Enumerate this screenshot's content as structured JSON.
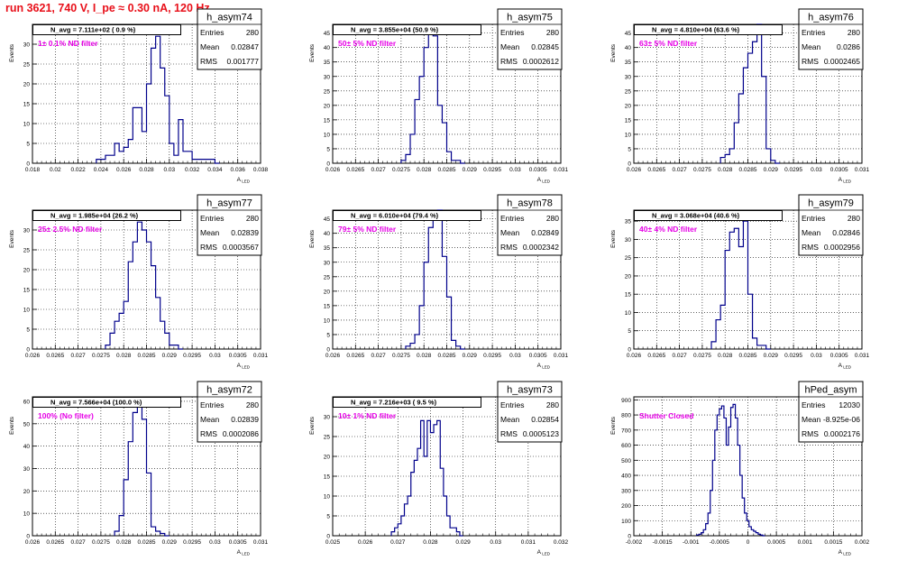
{
  "run_title": "run 3621,   740 V, I_pe ≈ 0.30 nA, 120 Hz",
  "colors": {
    "title": "#e8101a",
    "hist": "#00008b",
    "annotation": "#e600e6",
    "grid": "#000000"
  },
  "stat_labels": {
    "entries": "Entries",
    "mean": "Mean",
    "rms": "RMS"
  },
  "y_axis_label": "Events",
  "x_axis_label": "A",
  "x_axis_sub": "LED",
  "chart_data": [
    {
      "type": "histogram",
      "name": "h_asym74",
      "nav": "N_avg = 7.111e+02 ( 0.9 %)",
      "filter": "1± 0.1% ND filter",
      "stats": {
        "entries": "280",
        "mean": "0.02847",
        "rms": "0.001777"
      },
      "xlim": [
        0.018,
        0.038
      ],
      "xticks": [
        "0.018",
        "0.02",
        "0.022",
        "0.024",
        "0.026",
        "0.028",
        "0.03",
        "0.032",
        "0.034",
        "0.036",
        "0.038"
      ],
      "ylim": [
        0,
        35
      ],
      "yticks": [
        "0",
        "5",
        "10",
        "15",
        "20",
        "25",
        "30"
      ],
      "bins": {
        "start": 0.0236,
        "width": 0.0004,
        "counts": [
          1,
          1,
          2,
          2,
          5,
          3,
          4,
          6,
          14,
          14,
          8,
          20,
          29,
          32,
          24,
          17,
          5,
          2,
          11,
          3,
          3,
          1,
          1,
          1,
          1,
          1,
          0
        ]
      }
    },
    {
      "type": "histogram",
      "name": "h_asym75",
      "nav": "N_avg = 3.855e+04 (50.9 %)",
      "filter": "50± 5% ND filter",
      "stats": {
        "entries": "280",
        "mean": "0.02845",
        "rms": "0.0002612"
      },
      "xlim": [
        0.026,
        0.031
      ],
      "xticks": [
        "0.026",
        "0.0265",
        "0.027",
        "0.0275",
        "0.028",
        "0.0285",
        "0.029",
        "0.0295",
        "0.03",
        "0.0305",
        "0.031"
      ],
      "ylim": [
        0,
        48
      ],
      "yticks": [
        "0",
        "5",
        "10",
        "15",
        "20",
        "25",
        "30",
        "35",
        "40",
        "45"
      ],
      "bins": {
        "start": 0.0275,
        "width": 0.0001,
        "counts": [
          1,
          3,
          10,
          22,
          30,
          40,
          45,
          44,
          20,
          14,
          4,
          1,
          1,
          0
        ]
      }
    },
    {
      "type": "histogram",
      "name": "h_asym76",
      "nav": "N_avg = 4.810e+04 (63.6 %)",
      "filter": "63± 5% ND filter",
      "stats": {
        "entries": "280",
        "mean": "0.0286",
        "rms": "0.0002465"
      },
      "xlim": [
        0.026,
        0.031
      ],
      "xticks": [
        "0.026",
        "0.0265",
        "0.027",
        "0.0275",
        "0.028",
        "0.0285",
        "0.029",
        "0.0295",
        "0.03",
        "0.0305",
        "0.031"
      ],
      "ylim": [
        0,
        48
      ],
      "yticks": [
        "0",
        "5",
        "10",
        "15",
        "20",
        "25",
        "30",
        "35",
        "40",
        "45"
      ],
      "bins": {
        "start": 0.0279,
        "width": 0.0001,
        "counts": [
          2,
          3,
          5,
          14,
          24,
          33,
          38,
          42,
          48,
          30,
          5,
          1,
          0
        ]
      }
    },
    {
      "type": "histogram",
      "name": "h_asym77",
      "nav": "N_avg = 1.985e+04 (26.2 %)",
      "filter": "25± 2.5% ND filter",
      "stats": {
        "entries": "280",
        "mean": "0.02839",
        "rms": "0.0003567"
      },
      "xlim": [
        0.026,
        0.031
      ],
      "xticks": [
        "0.026",
        "0.0265",
        "0.027",
        "0.0275",
        "0.028",
        "0.0285",
        "0.029",
        "0.0295",
        "0.03",
        "0.0305",
        "0.031"
      ],
      "ylim": [
        0,
        35
      ],
      "yticks": [
        "0",
        "5",
        "10",
        "15",
        "20",
        "25",
        "30"
      ],
      "bins": {
        "start": 0.0276,
        "width": 0.0001,
        "counts": [
          1,
          4,
          7,
          9,
          12,
          22,
          27,
          32,
          30,
          27,
          21,
          13,
          7,
          4,
          1,
          1,
          0
        ]
      }
    },
    {
      "type": "histogram",
      "name": "h_asym78",
      "nav": "N_avg = 6.010e+04 (79.4 %)",
      "filter": "79± 5% ND filter",
      "stats": {
        "entries": "280",
        "mean": "0.02849",
        "rms": "0.0002342"
      },
      "xlim": [
        0.026,
        0.031
      ],
      "xticks": [
        "0.026",
        "0.0265",
        "0.027",
        "0.0275",
        "0.028",
        "0.0285",
        "0.029",
        "0.0295",
        "0.03",
        "0.0305",
        "0.031"
      ],
      "ylim": [
        0,
        48
      ],
      "yticks": [
        "0",
        "5",
        "10",
        "15",
        "20",
        "25",
        "30",
        "35",
        "40",
        "45"
      ],
      "bins": {
        "start": 0.0276,
        "width": 0.0001,
        "counts": [
          1,
          2,
          5,
          15,
          30,
          42,
          45,
          48,
          32,
          18,
          3,
          1,
          0
        ]
      }
    },
    {
      "type": "histogram",
      "name": "h_asym79",
      "nav": "N_avg = 3.068e+04 (40.6 %)",
      "filter": "40± 4% ND filter",
      "stats": {
        "entries": "280",
        "mean": "0.02846",
        "rms": "0.0002956"
      },
      "xlim": [
        0.026,
        0.031
      ],
      "xticks": [
        "0.026",
        "0.0265",
        "0.027",
        "0.0275",
        "0.028",
        "0.0285",
        "0.029",
        "0.0295",
        "0.03",
        "0.0305",
        "0.031"
      ],
      "ylim": [
        0,
        38
      ],
      "yticks": [
        "0",
        "5",
        "10",
        "15",
        "20",
        "25",
        "30",
        "35"
      ],
      "bins": {
        "start": 0.0277,
        "width": 0.0001,
        "counts": [
          2,
          8,
          12,
          27,
          32,
          33,
          28,
          35,
          15,
          3,
          1,
          1,
          0
        ]
      }
    },
    {
      "type": "histogram",
      "name": "h_asym72",
      "nav": "N_avg = 7.566e+04 (100.0 %)",
      "filter": "100% (No filter)",
      "stats": {
        "entries": "280",
        "mean": "0.02839",
        "rms": "0.0002086"
      },
      "xlim": [
        0.026,
        0.031
      ],
      "xticks": [
        "0.026",
        "0.0265",
        "0.027",
        "0.0275",
        "0.028",
        "0.0285",
        "0.029",
        "0.0295",
        "0.03",
        "0.0305",
        "0.031"
      ],
      "ylim": [
        0,
        62
      ],
      "yticks": [
        "0",
        "10",
        "20",
        "30",
        "40",
        "50",
        "60"
      ],
      "bins": {
        "start": 0.0278,
        "width": 0.0001,
        "counts": [
          2,
          9,
          25,
          42,
          55,
          60,
          52,
          28,
          4,
          2,
          1,
          0
        ]
      }
    },
    {
      "type": "histogram",
      "name": "h_asym73",
      "nav": "N_avg = 7.216e+03 ( 9.5 %)",
      "filter": "10± 1% ND filter",
      "stats": {
        "entries": "280",
        "mean": "0.02854",
        "rms": "0.0005123"
      },
      "xlim": [
        0.025,
        0.032
      ],
      "xticks": [
        "0.025",
        "0.026",
        "0.027",
        "0.028",
        "0.029",
        "0.03",
        "0.031",
        "0.032"
      ],
      "ylim": [
        0,
        35
      ],
      "yticks": [
        "0",
        "5",
        "10",
        "15",
        "20",
        "25",
        "30"
      ],
      "bins": {
        "start": 0.0268,
        "width": 0.0001,
        "counts": [
          1,
          2,
          3,
          5,
          8,
          10,
          16,
          19,
          22,
          29,
          20,
          29,
          26,
          28,
          29,
          17,
          10,
          5,
          2,
          2,
          1,
          0
        ]
      }
    },
    {
      "type": "histogram",
      "name": "hPed_asym",
      "nav": "",
      "filter": "Shutter Closed",
      "stats": {
        "entries": "12030",
        "mean": "-8.925e-06",
        "rms": "0.0002176"
      },
      "xlim": [
        -0.002,
        0.002
      ],
      "xticks": [
        "-0.002",
        "-0.0015",
        "-0.001",
        "-0.0005",
        "0",
        "0.0005",
        "0.001",
        "0.0015",
        "0.002"
      ],
      "ylim": [
        0,
        920
      ],
      "yticks": [
        "0",
        "100",
        "200",
        "300",
        "400",
        "500",
        "600",
        "700",
        "800",
        "900"
      ],
      "bins": {
        "start": -0.0009,
        "width": 4e-05,
        "counts": [
          5,
          10,
          20,
          40,
          80,
          150,
          300,
          500,
          700,
          800,
          840,
          860,
          780,
          600,
          720,
          850,
          870,
          780,
          600,
          400,
          250,
          150,
          100,
          60,
          40,
          30,
          20,
          10,
          5,
          0
        ]
      }
    }
  ]
}
